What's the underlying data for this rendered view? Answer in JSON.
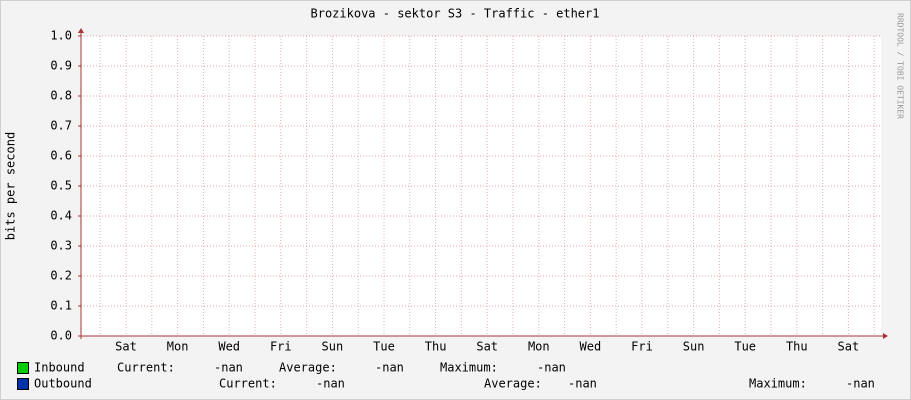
{
  "chart_data": {
    "type": "line",
    "title": "Brozikova - sektor S3 - Traffic - ether1",
    "y_label": "bits per second",
    "watermark": "RRDTOOL / TOBI OETIKER",
    "categories": [
      "Sat",
      "Mon",
      "Wed",
      "Fri",
      "Sun",
      "Tue",
      "Thu",
      "Sat",
      "Mon",
      "Wed",
      "Fri",
      "Sun",
      "Tue",
      "Thu",
      "Sat"
    ],
    "ylim": [
      0,
      1
    ],
    "yticks": [
      {
        "value": 0,
        "label": "0.0"
      },
      0.1,
      0.2,
      0.3,
      0.4,
      0.5,
      0.6,
      0.7,
      0.8,
      0.9,
      {
        "value": 1,
        "label": "1.0"
      }
    ],
    "grid": true,
    "legend_labels": {
      "current": "Current:",
      "average": "Average:",
      "maximum": "Maximum:"
    },
    "series": [
      {
        "name": "Inbound",
        "color": "#00cc00",
        "current": "-nan",
        "average": "-nan",
        "maximum": "-nan"
      },
      {
        "name": "Outbound",
        "color": "#0033aa",
        "current": "-nan",
        "average": "-nan",
        "maximum": "-nan"
      }
    ]
  }
}
